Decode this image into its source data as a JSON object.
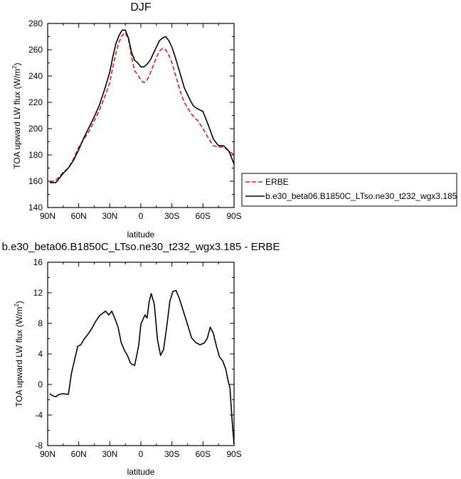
{
  "chart_data": [
    {
      "type": "line",
      "title": "DJF",
      "xlabel": "latitude",
      "ylabel": "TOA upward LW flux (W/m",
      "ylabel_sup": "2",
      "ylabel_end": ")",
      "xlim": [
        90,
        -90
      ],
      "ylim": [
        140,
        280
      ],
      "xticks": [
        90,
        60,
        30,
        0,
        -30,
        -60,
        -90
      ],
      "xtick_labels": [
        "90N",
        "60N",
        "30N",
        "0",
        "30S",
        "60S",
        "90S"
      ],
      "yticks": [
        140,
        160,
        180,
        200,
        220,
        240,
        260,
        280
      ],
      "ytick_labels": [
        "140",
        "160",
        "180",
        "200",
        "220",
        "240",
        "260",
        "280"
      ],
      "legend_position": "right",
      "series": [
        {
          "name": "ERBE",
          "color": "#e31a1c",
          "dash": "dashed",
          "x": [
            88,
            85,
            82,
            79,
            75,
            70,
            65,
            60,
            55,
            50,
            45,
            40,
            35,
            30,
            27,
            24,
            21,
            18,
            15,
            12,
            9,
            6,
            3,
            0,
            -3,
            -6,
            -9,
            -12,
            -15,
            -18,
            -21,
            -24,
            -27,
            -30,
            -33,
            -36,
            -39,
            -42,
            -45,
            -48,
            -51,
            -55,
            -60,
            -65,
            -70,
            -75,
            -80,
            -85,
            -90
          ],
          "y": [
            160,
            160,
            161,
            163,
            167,
            170,
            177,
            186,
            192,
            198,
            206,
            214,
            224,
            235,
            247,
            258,
            266,
            271,
            273,
            268,
            255,
            244,
            241,
            237,
            235,
            237,
            242,
            248,
            254,
            259,
            261,
            260,
            256,
            250,
            242,
            234,
            226,
            220,
            216,
            212,
            209,
            206,
            200,
            193,
            187,
            186,
            186,
            183,
            180
          ]
        },
        {
          "name": "b.e30_beta06.B1850C_LTso.ne30_t232_wgx3.185",
          "color": "#000000",
          "dash": "solid",
          "x": [
            88,
            85,
            82,
            79,
            75,
            70,
            65,
            60,
            55,
            50,
            45,
            40,
            35,
            30,
            27,
            24,
            21,
            18,
            15,
            12,
            9,
            6,
            3,
            0,
            -3,
            -6,
            -9,
            -12,
            -15,
            -18,
            -21,
            -24,
            -27,
            -30,
            -33,
            -36,
            -39,
            -42,
            -45,
            -48,
            -51,
            -55,
            -60,
            -65,
            -70,
            -75,
            -80,
            -85,
            -90
          ],
          "y": [
            159,
            159,
            159,
            162,
            166,
            170,
            176,
            184,
            193,
            201,
            209,
            218,
            230,
            243,
            255,
            265,
            271,
            275,
            275,
            269,
            258,
            252,
            250,
            247,
            247,
            249,
            252,
            257,
            262,
            267,
            269,
            270,
            267,
            262,
            255,
            247,
            239,
            231,
            226,
            221,
            217,
            215,
            213,
            203,
            192,
            187,
            187,
            183,
            173
          ]
        }
      ]
    },
    {
      "type": "line",
      "title": "b.e30_beta06.B1850C_LTso.ne30_t232_wgx3.185 - ERBE",
      "xlabel": "latitude",
      "ylabel": "TOA upward LW flux (W/m",
      "ylabel_sup": "2",
      "ylabel_end": ")",
      "xlim": [
        90,
        -90
      ],
      "ylim": [
        -8,
        16
      ],
      "xticks": [
        90,
        60,
        30,
        0,
        -30,
        -60,
        -90
      ],
      "xtick_labels": [
        "90N",
        "60N",
        "30N",
        "0",
        "30S",
        "60S",
        "90S"
      ],
      "yticks": [
        -8,
        -4,
        0,
        4,
        8,
        12,
        16
      ],
      "ytick_labels": [
        "-8",
        "-4",
        "0",
        "4",
        "8",
        "12",
        "16"
      ],
      "series": [
        {
          "color": "#000000",
          "dash": "solid",
          "x": [
            88,
            85,
            82,
            79,
            75,
            70,
            67,
            64,
            61,
            58,
            55,
            51,
            47,
            44,
            40,
            37,
            34,
            31,
            28,
            25,
            22,
            19,
            16,
            13,
            10,
            8,
            6,
            4,
            2,
            0,
            -2,
            -4,
            -6,
            -8,
            -10,
            -13,
            -16,
            -19,
            -22,
            -25,
            -28,
            -31,
            -34,
            -37,
            -41,
            -45,
            -49,
            -53,
            -57,
            -61,
            -64,
            -67,
            -70,
            -73,
            -76,
            -79,
            -82,
            -84,
            -86,
            -88,
            -90
          ],
          "y": [
            -1.2,
            -1.5,
            -1.6,
            -1.3,
            -1.2,
            -1.3,
            1.5,
            3.2,
            5.0,
            5.2,
            5.9,
            6.6,
            7.4,
            8.2,
            9.0,
            9.3,
            9.6,
            9.1,
            9.6,
            8.6,
            7.5,
            5.5,
            4.5,
            3.8,
            2.8,
            2.6,
            2.5,
            3.8,
            5.2,
            7.9,
            8.5,
            9.1,
            8.7,
            10.8,
            11.9,
            10.5,
            5.9,
            3.8,
            4.6,
            7.6,
            10.9,
            12.2,
            12.3,
            11.3,
            9.6,
            7.9,
            6.1,
            5.5,
            5.2,
            5.4,
            6.0,
            7.5,
            6.7,
            5.0,
            3.6,
            3.1,
            2.0,
            0.6,
            -0.4,
            -4.5,
            -7.8
          ]
        }
      ]
    }
  ]
}
